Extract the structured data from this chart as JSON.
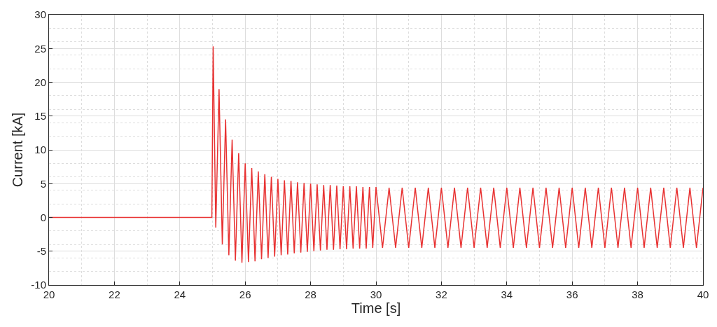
{
  "chart_data": {
    "type": "line",
    "xlabel": "Time [s]",
    "ylabel": "Current [kA]",
    "x": [
      20,
      24.98,
      25.02,
      25.1,
      25.2,
      25.3,
      25.4,
      25.5,
      25.6,
      25.7,
      25.8,
      25.9,
      26.0,
      26.1,
      26.2,
      26.3,
      26.4,
      26.5,
      26.6,
      26.7,
      26.8,
      26.9,
      27.0,
      27.1,
      27.2,
      27.3,
      27.4,
      27.5,
      27.6,
      27.7,
      27.8,
      27.9,
      28.0,
      28.1,
      28.2,
      28.3,
      28.4,
      28.5,
      28.6,
      28.7,
      28.8,
      28.9,
      29.0,
      29.1,
      29.2,
      29.3,
      29.4,
      29.5,
      29.6,
      29.7,
      29.8,
      29.9,
      30.0,
      30.2,
      30.4,
      30.6,
      30.8,
      31.0,
      31.2,
      31.4,
      31.6,
      31.8,
      32.0,
      32.2,
      32.4,
      32.6,
      32.8,
      33.0,
      33.2,
      33.4,
      33.6,
      33.8,
      34.0,
      34.2,
      34.4,
      34.6,
      34.8,
      35.0,
      35.2,
      35.4,
      35.6,
      35.8,
      36.0,
      36.2,
      36.4,
      36.6,
      36.8,
      37.0,
      37.2,
      37.4,
      37.6,
      37.8,
      38.0,
      38.2,
      38.4,
      38.6,
      38.8,
      39.0,
      39.2,
      39.4,
      39.6,
      39.8,
      40.0
    ],
    "series": [
      {
        "color": "#e83232",
        "values": [
          0,
          0,
          25.3,
          -1.5,
          19.0,
          -4.0,
          14.5,
          -5.6,
          11.5,
          -6.4,
          9.5,
          -6.7,
          8.0,
          -6.6,
          7.3,
          -6.5,
          6.8,
          -6.2,
          6.4,
          -6.0,
          6.0,
          -5.8,
          5.7,
          -5.6,
          5.5,
          -5.5,
          5.4,
          -5.3,
          5.2,
          -5.2,
          5.1,
          -5.1,
          5.0,
          -5.0,
          4.9,
          -4.9,
          4.8,
          -4.8,
          4.8,
          -4.8,
          4.7,
          -4.7,
          4.6,
          -4.7,
          4.6,
          -4.6,
          4.6,
          -4.6,
          4.5,
          -4.6,
          4.5,
          -4.5,
          4.5,
          -4.5,
          4.4,
          -4.5,
          4.4,
          -4.5,
          4.4,
          -4.5,
          4.4,
          -4.5,
          4.4,
          -4.5,
          4.4,
          -4.5,
          4.4,
          -4.5,
          4.4,
          -4.5,
          4.4,
          -4.5,
          4.4,
          -4.5,
          4.4,
          -4.5,
          4.4,
          -4.5,
          4.4,
          -4.5,
          4.4,
          -4.5,
          4.4,
          -4.5,
          4.4,
          -4.5,
          4.4,
          -4.5,
          4.4,
          -4.5,
          4.4,
          -4.5,
          4.4,
          -4.5,
          4.4,
          -4.5,
          4.4,
          -4.5,
          4.4,
          -4.5,
          4.4,
          -4.5,
          4.4
        ]
      }
    ],
    "xlim": [
      20,
      40
    ],
    "xticks": [
      20,
      22,
      24,
      26,
      28,
      30,
      32,
      34,
      36,
      38,
      40
    ],
    "ylim": [
      -10,
      30
    ],
    "yticks": [
      -10,
      -5,
      0,
      5,
      10,
      15,
      20,
      25,
      30
    ],
    "grid": true,
    "marker": "none",
    "line_style": "solid"
  }
}
